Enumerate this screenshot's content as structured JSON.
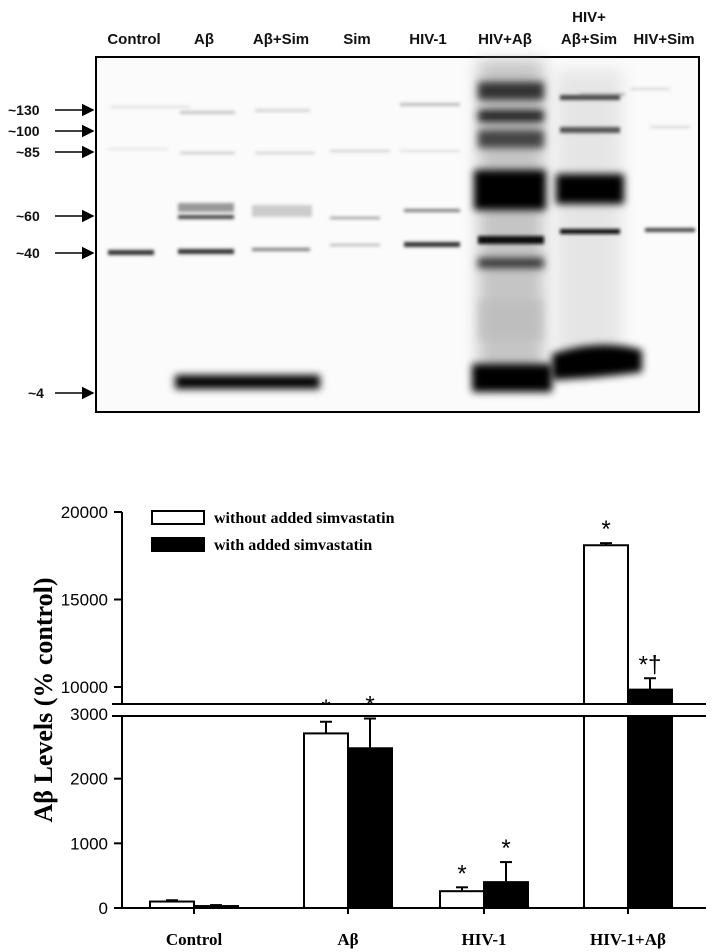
{
  "blot": {
    "lanes": [
      {
        "line1": "Control",
        "line2": ""
      },
      {
        "line1": "Aβ",
        "line2": ""
      },
      {
        "line1": "Aβ+Sim",
        "line2": ""
      },
      {
        "line1": "Sim",
        "line2": ""
      },
      {
        "line1": "HIV-1",
        "line2": ""
      },
      {
        "line1": "HIV+Aβ",
        "line2": ""
      },
      {
        "line1": "HIV+",
        "line2": "Aβ+Sim"
      },
      {
        "line1": "HIV+Sim",
        "line2": ""
      }
    ],
    "markers": [
      "~130",
      "~100",
      "~85",
      "~60",
      "~40",
      "~4"
    ]
  },
  "chart_data": {
    "type": "bar",
    "categories": [
      "Control",
      "Aβ",
      "HIV-1",
      "HIV-1+Aβ"
    ],
    "ylabel": "Aβ Levels (% control)",
    "axis_break": {
      "lower": [
        0,
        3000
      ],
      "upper": [
        8000,
        20000
      ]
    },
    "yticks_lower": [
      0,
      1000,
      2000,
      3000
    ],
    "yticks_upper": [
      10000,
      15000,
      20000
    ],
    "legend_position": "top-left",
    "series": [
      {
        "name": "without added simvastatin",
        "fill": "#ffffff",
        "values": [
          100,
          2700,
          260,
          18100
        ],
        "errors": [
          20,
          180,
          60,
          120
        ],
        "annotations": [
          "",
          "*",
          "*",
          "*"
        ]
      },
      {
        "name": "with added simvastatin",
        "fill": "#000000",
        "values": [
          30,
          2470,
          400,
          9850
        ],
        "errors": [
          15,
          460,
          310,
          650
        ],
        "annotations": [
          "",
          "*",
          "*",
          "*†"
        ]
      }
    ]
  }
}
